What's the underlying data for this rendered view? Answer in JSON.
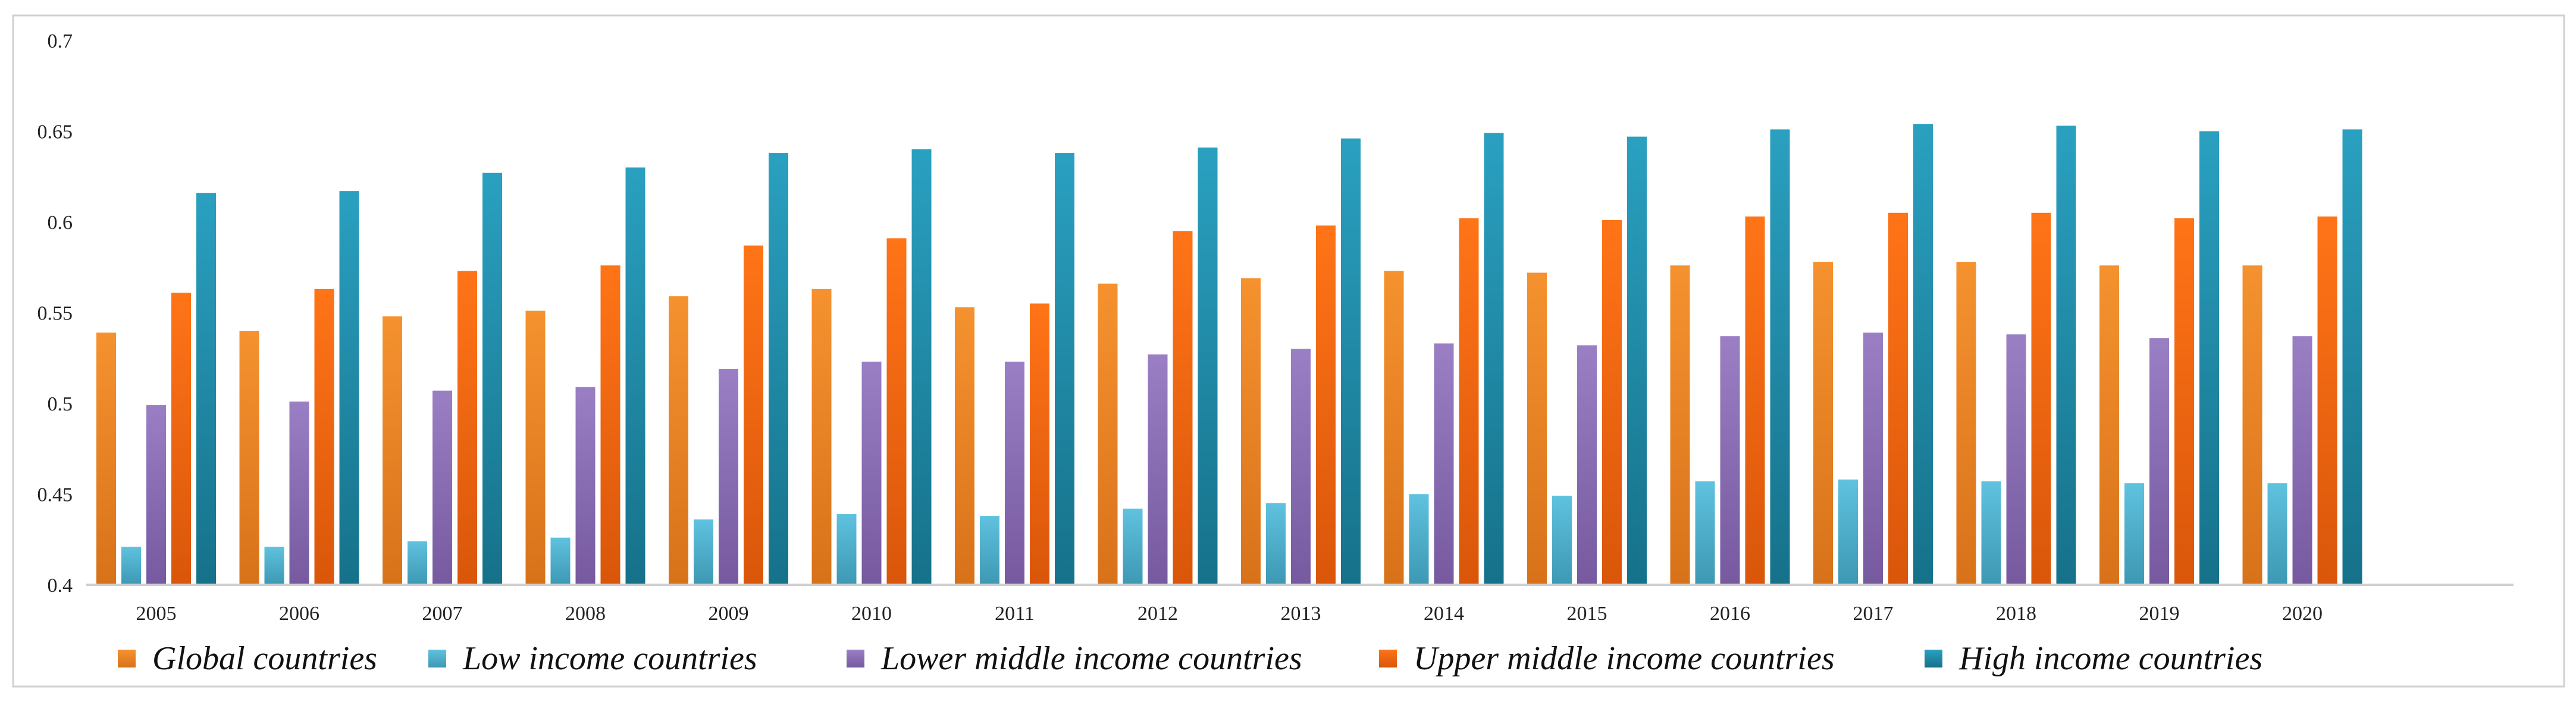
{
  "chart_data": {
    "type": "bar",
    "title": "",
    "xlabel": "",
    "ylabel": "",
    "ylim": [
      0.4,
      0.7
    ],
    "yticks": [
      0.4,
      0.45,
      0.5,
      0.55,
      0.6,
      0.65,
      0.7
    ],
    "ytick_labels": [
      "0.4",
      "0.45",
      "0.5",
      "0.55",
      "0.6",
      "0.65",
      "0.7"
    ],
    "grid": false,
    "legend_position": "bottom",
    "categories": [
      "2005",
      "2006",
      "2007",
      "2008",
      "2009",
      "2010",
      "2011",
      "2012",
      "2013",
      "2014",
      "2015",
      "2016",
      "2017",
      "2018",
      "2019",
      "2020"
    ],
    "series": [
      {
        "name": "Global countries",
        "color": "#f5922f",
        "color_dark": "#d8721a",
        "values": [
          0.539,
          0.54,
          0.548,
          0.551,
          0.559,
          0.563,
          0.553,
          0.566,
          0.569,
          0.573,
          0.572,
          0.576,
          0.578,
          0.578,
          0.576,
          0.576
        ]
      },
      {
        "name": "Low income countries",
        "color": "#5fc2df",
        "color_dark": "#3d98b3",
        "values": [
          0.421,
          0.421,
          0.424,
          0.426,
          0.436,
          0.439,
          0.438,
          0.442,
          0.445,
          0.45,
          0.449,
          0.457,
          0.458,
          0.457,
          0.456,
          0.456
        ]
      },
      {
        "name": "Lower middle income countries",
        "color": "#9a7fc4",
        "color_dark": "#76599f",
        "values": [
          0.499,
          0.501,
          0.507,
          0.509,
          0.519,
          0.523,
          0.523,
          0.527,
          0.53,
          0.533,
          0.532,
          0.537,
          0.539,
          0.538,
          0.536,
          0.537
        ]
      },
      {
        "name": "Upper middle income countries",
        "color": "#ff7417",
        "color_dark": "#d9560a",
        "values": [
          0.561,
          0.563,
          0.573,
          0.576,
          0.587,
          0.591,
          0.555,
          0.595,
          0.598,
          0.602,
          0.601,
          0.603,
          0.605,
          0.605,
          0.602,
          0.603
        ]
      },
      {
        "name": "High income countries",
        "color": "#2aa0c0",
        "color_dark": "#16718a",
        "values": [
          0.616,
          0.617,
          0.627,
          0.63,
          0.638,
          0.64,
          0.638,
          0.641,
          0.646,
          0.649,
          0.647,
          0.651,
          0.654,
          0.653,
          0.65,
          0.651
        ]
      }
    ]
  }
}
